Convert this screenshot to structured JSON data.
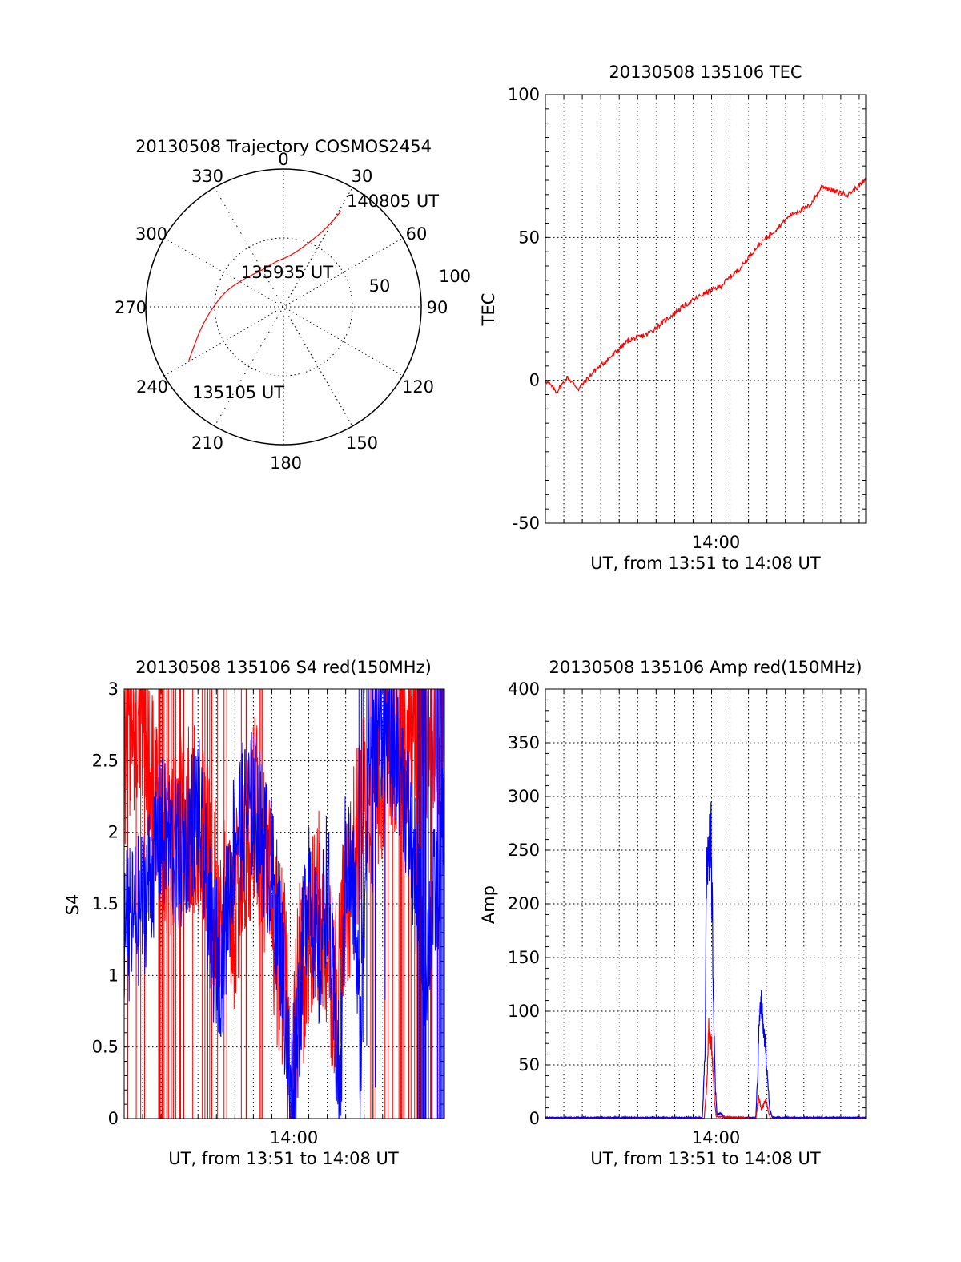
{
  "colors": {
    "red": "#ff0000",
    "blue": "#0000ff",
    "axis": "#000000",
    "background": "#ffffff"
  },
  "chart_data": [
    {
      "type": "polar",
      "title": "20130508 Trajectory COSMOS2454",
      "angle_labels": [
        "0",
        "30",
        "60",
        "90",
        "120",
        "150",
        "180",
        "210",
        "240",
        "270",
        "300",
        "330"
      ],
      "radius_labels": [
        "50",
        "100"
      ],
      "rlim": [
        0,
        100
      ],
      "series": [
        {
          "name": "trajectory",
          "color": "#ff0000",
          "points_az_r": [
            [
              240.5,
              79
            ],
            [
              254,
              63
            ],
            [
              268,
              52
            ],
            [
              285,
              43
            ],
            [
              305,
              35
            ],
            [
              330,
              31
            ],
            [
              350,
              33
            ],
            [
              8,
              38
            ],
            [
              20,
              48
            ],
            [
              28,
              64
            ],
            [
              31,
              81
            ]
          ]
        }
      ],
      "annotations": [
        "140805 UT",
        "135935 UT",
        "135105 UT"
      ]
    },
    {
      "type": "line",
      "title": "20130508 135106 TEC",
      "xlabel": "UT, from 13:51 to 14:08 UT",
      "ylabel": "TEC",
      "xlim": [
        0,
        17.35
      ],
      "ylim": [
        -50,
        100
      ],
      "y_ticks": [
        "-50",
        "0",
        "50",
        "100"
      ],
      "x_tick_label": "14:00",
      "x_tick_value": 9,
      "grid": "dotted",
      "series": [
        {
          "name": "TEC",
          "color": "#ff0000",
          "knots": [
            [
              0,
              0
            ],
            [
              0.6,
              -4
            ],
            [
              1.2,
              1
            ],
            [
              1.8,
              -3
            ],
            [
              2.6,
              3
            ],
            [
              3.5,
              8
            ],
            [
              4.5,
              14
            ],
            [
              5.5,
              16
            ],
            [
              6.5,
              21
            ],
            [
              7.5,
              26
            ],
            [
              8.5,
              30
            ],
            [
              9.5,
              33
            ],
            [
              10.5,
              39
            ],
            [
              11.5,
              47
            ],
            [
              12.5,
              53
            ],
            [
              13.3,
              58
            ],
            [
              14.3,
              61
            ],
            [
              15.0,
              68
            ],
            [
              15.7,
              66
            ],
            [
              16.4,
              65
            ],
            [
              17.35,
              70
            ]
          ]
        }
      ]
    },
    {
      "type": "line",
      "title": "20130508 135106 S4 red(150MHz)",
      "xlabel": "UT, from 13:51 to 14:08 UT",
      "ylabel": "S4",
      "xlim": [
        0,
        17.35
      ],
      "ylim": [
        0,
        3
      ],
      "y_ticks": [
        "0",
        "0.5",
        "1",
        "1.5",
        "2",
        "2.5",
        "3"
      ],
      "x_tick_label": "14:00",
      "x_tick_value": 9,
      "grid": "dotted",
      "series": [
        {
          "name": "red",
          "color": "#ff0000",
          "knots": [
            [
              0,
              2.6
            ],
            [
              1,
              2.8
            ],
            [
              2,
              1.8
            ],
            [
              3,
              2.0
            ],
            [
              4,
              2.1
            ],
            [
              5,
              1.5
            ],
            [
              6,
              1.4
            ],
            [
              7,
              2.2
            ],
            [
              7.8,
              1.6
            ],
            [
              8.3,
              1.2
            ],
            [
              8.8,
              0.9
            ],
            [
              9.0,
              0.1
            ],
            [
              9.5,
              1.0
            ],
            [
              10.0,
              1.1
            ],
            [
              10.5,
              1.5
            ],
            [
              11.0,
              1.2
            ],
            [
              11.5,
              0.9
            ],
            [
              12.0,
              1.5
            ],
            [
              13.0,
              2.2
            ],
            [
              14.0,
              2.5
            ],
            [
              15.0,
              2.7
            ],
            [
              17.35,
              2.8
            ]
          ]
        },
        {
          "name": "blue",
          "color": "#0000ff",
          "knots": [
            [
              0,
              1.3
            ],
            [
              1,
              1.5
            ],
            [
              2,
              2.0
            ],
            [
              3,
              1.8
            ],
            [
              4,
              2.2
            ],
            [
              4.8,
              1.2
            ],
            [
              5.3,
              1.1
            ],
            [
              6,
              2.0
            ],
            [
              7,
              2.2
            ],
            [
              8,
              1.7
            ],
            [
              8.5,
              1.2
            ],
            [
              8.8,
              0.6
            ],
            [
              9.0,
              0.1
            ],
            [
              9.5,
              0.8
            ],
            [
              10.0,
              1.8
            ],
            [
              10.5,
              1.0
            ],
            [
              11.0,
              1.7
            ],
            [
              11.3,
              0.9
            ],
            [
              11.7,
              0.1
            ],
            [
              12.0,
              1.9
            ],
            [
              12.5,
              1.5
            ],
            [
              12.8,
              0.4
            ],
            [
              13.2,
              2.5
            ],
            [
              14,
              2.8
            ],
            [
              15,
              2.5
            ],
            [
              16.3,
              1.1
            ],
            [
              17.35,
              2.0
            ]
          ]
        }
      ]
    },
    {
      "type": "line",
      "title": "20130508 135106 Amp red(150MHz)",
      "xlabel": "UT, from 13:51 to 14:08 UT",
      "ylabel": "Amp",
      "xlim": [
        0,
        17.35
      ],
      "ylim": [
        0,
        400
      ],
      "y_ticks": [
        "0",
        "50",
        "100",
        "150",
        "200",
        "250",
        "300",
        "350",
        "400"
      ],
      "x_tick_label": "14:00",
      "x_tick_value": 9,
      "grid": "dotted",
      "series": [
        {
          "name": "red",
          "color": "#ff0000",
          "knots": [
            [
              0,
              0
            ],
            [
              8.6,
              0
            ],
            [
              8.75,
              30
            ],
            [
              8.85,
              85
            ],
            [
              8.95,
              80
            ],
            [
              9.05,
              55
            ],
            [
              9.15,
              20
            ],
            [
              9.25,
              2
            ],
            [
              11.4,
              0
            ],
            [
              11.55,
              20
            ],
            [
              11.7,
              8
            ],
            [
              11.8,
              12
            ],
            [
              11.95,
              18
            ],
            [
              12.1,
              5
            ],
            [
              12.2,
              0
            ],
            [
              17.35,
              0
            ]
          ]
        },
        {
          "name": "blue",
          "color": "#0000ff",
          "knots": [
            [
              0,
              1
            ],
            [
              8.5,
              1
            ],
            [
              8.65,
              60
            ],
            [
              8.72,
              210
            ],
            [
              8.8,
              270
            ],
            [
              8.88,
              240
            ],
            [
              8.95,
              290
            ],
            [
              9.02,
              220
            ],
            [
              9.1,
              120
            ],
            [
              9.2,
              30
            ],
            [
              9.3,
              3
            ],
            [
              9.5,
              5
            ],
            [
              9.7,
              1
            ],
            [
              11.4,
              1
            ],
            [
              11.5,
              40
            ],
            [
              11.6,
              105
            ],
            [
              11.68,
              110
            ],
            [
              11.78,
              90
            ],
            [
              11.9,
              70
            ],
            [
              12.05,
              35
            ],
            [
              12.15,
              8
            ],
            [
              12.3,
              1
            ],
            [
              17.35,
              1
            ]
          ]
        }
      ]
    }
  ]
}
